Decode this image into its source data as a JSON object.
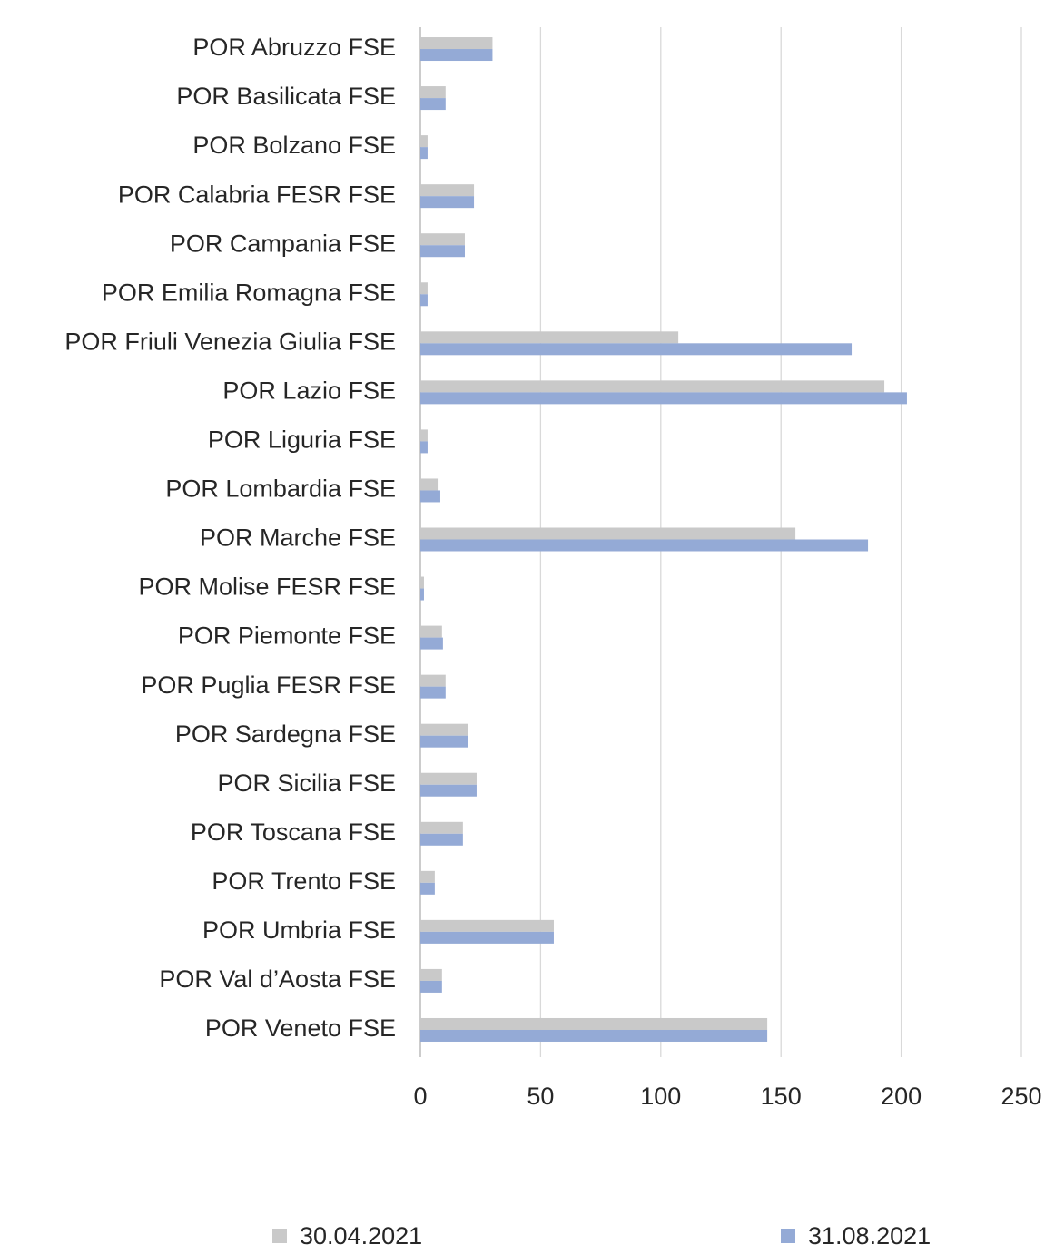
{
  "chart_data": {
    "type": "bar",
    "orientation": "horizontal",
    "categories": [
      "POR Abruzzo FSE",
      "POR Basilicata FSE",
      "POR Bolzano FSE",
      "POR Calabria FESR FSE",
      "POR Campania FSE",
      "POR Emilia Romagna FSE",
      "POR Friuli Venezia Giulia FSE",
      "POR Lazio FSE",
      "POR Liguria FSE",
      "POR Lombardia FSE",
      "POR Marche FSE",
      "POR Molise FESR FSE",
      "POR Piemonte FSE",
      "POR Puglia FESR FSE",
      "POR Sardegna FSE",
      "POR Sicilia FSE",
      "POR Toscana FSE",
      "POR Trento FSE",
      "POR Umbria FSE",
      "POR Val d’Aosta FSE",
      "POR Veneto FSE"
    ],
    "series": [
      {
        "name": "30.04.2021",
        "color": "#c9c9c9",
        "values": [
          30,
          10.5,
          3,
          22.3,
          18.5,
          3,
          107.3,
          193,
          3,
          7.2,
          156,
          1.5,
          9,
          10.5,
          20,
          23.4,
          17.7,
          6,
          55.5,
          9,
          144.3
        ]
      },
      {
        "name": "31.08.2021",
        "color": "#94aad6",
        "values": [
          30,
          10.5,
          3,
          22.3,
          18.5,
          3,
          179.4,
          202.4,
          3,
          8.3,
          186.2,
          1.5,
          9.4,
          10.5,
          20,
          23.4,
          17.7,
          6,
          55.5,
          9,
          144.3
        ]
      }
    ],
    "xlim": [
      0,
      250
    ],
    "xticks": [
      0,
      50,
      100,
      150,
      200,
      250
    ],
    "grid": true,
    "legend": "bottom"
  }
}
